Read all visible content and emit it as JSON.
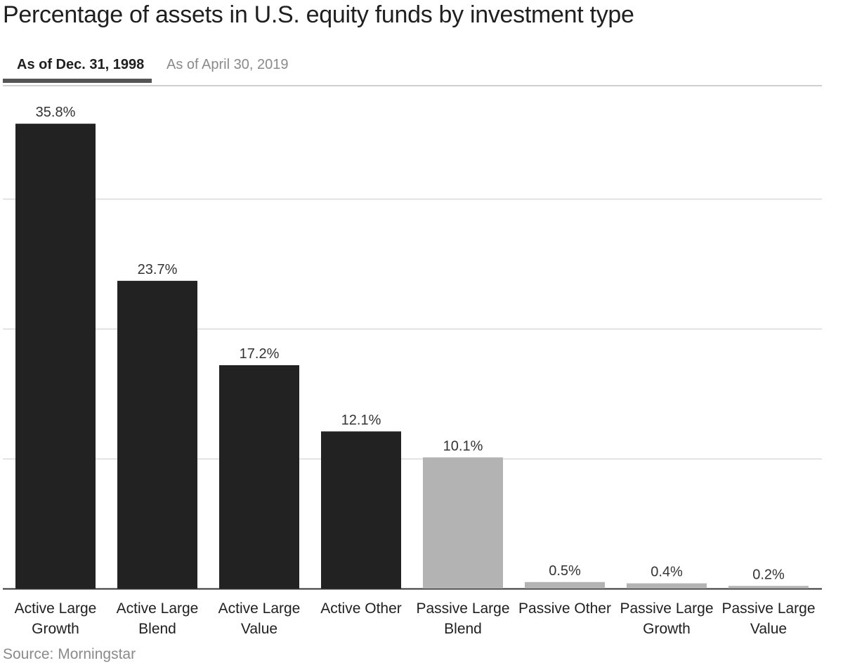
{
  "title": "Percentage of assets in U.S. equity funds by investment type",
  "tabs": [
    {
      "label": "As of Dec. 31, 1998",
      "active": true
    },
    {
      "label": "As of April 30, 2019",
      "active": false
    }
  ],
  "source": "Source: Morningstar",
  "colors": {
    "active": "#222222",
    "passive": "#b3b3b3",
    "grid": "#d9d9d9",
    "baseline": "#333333"
  },
  "chart_data": {
    "type": "bar",
    "categories": [
      [
        "Active Large",
        "Growth"
      ],
      [
        "Active Large",
        "Blend"
      ],
      [
        "Active Large",
        "Value"
      ],
      [
        "Active Other"
      ],
      [
        "Passive Large",
        "Blend"
      ],
      [
        "Passive Other"
      ],
      [
        "Passive Large",
        "Growth"
      ],
      [
        "Passive Large",
        "Value"
      ]
    ],
    "values": [
      35.8,
      23.7,
      17.2,
      12.1,
      10.1,
      0.5,
      0.4,
      0.2
    ],
    "data_labels": [
      "35.8%",
      "23.7%",
      "17.2%",
      "12.1%",
      "10.1%",
      "0.5%",
      "0.4%",
      "0.2%"
    ],
    "groups": [
      "active",
      "active",
      "active",
      "active",
      "passive",
      "passive",
      "passive",
      "passive"
    ],
    "ylim": [
      0,
      40
    ],
    "y_gridlines": [
      10,
      20,
      30,
      40
    ],
    "grid": true,
    "y_tick_labels_shown": false,
    "legend": "none"
  }
}
